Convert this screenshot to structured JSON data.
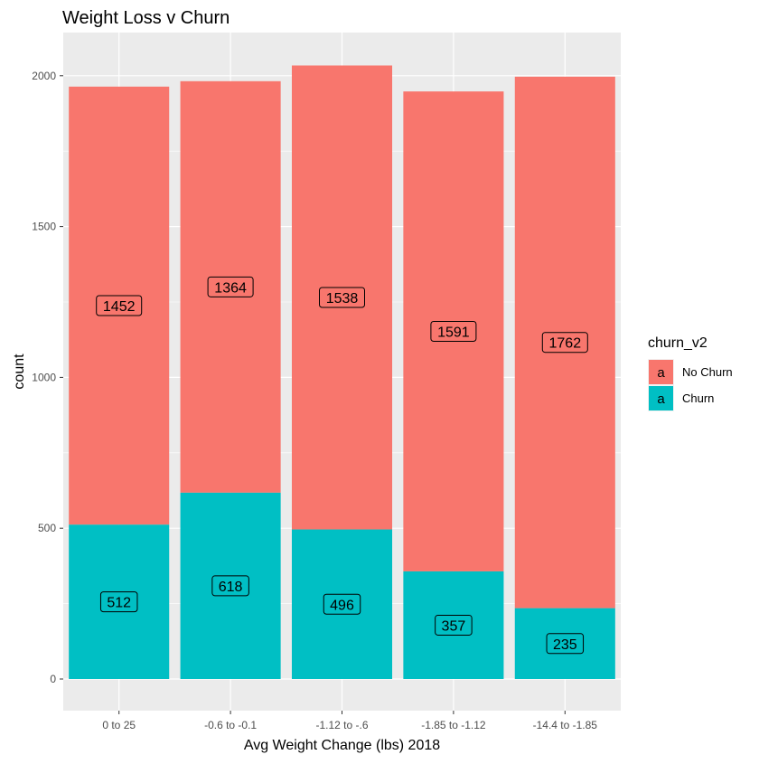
{
  "chart_data": {
    "type": "bar",
    "stacked": true,
    "title": "Weight Loss v Churn",
    "xlabel": "Avg Weight Change (lbs) 2018",
    "ylabel": "count",
    "categories": [
      "0 to 25",
      "-0.6 to -0.1",
      "-1.12 to -.6",
      "-1.85 to -1.12",
      "-14.4 to -1.85"
    ],
    "series": [
      {
        "name": "Churn",
        "values": [
          512,
          618,
          496,
          357,
          235
        ],
        "color": "#00BFC4"
      },
      {
        "name": "No Churn",
        "values": [
          1452,
          1364,
          1538,
          1591,
          1762
        ],
        "color": "#F8766D"
      }
    ],
    "yticks": [
      "0",
      "500",
      "1000",
      "1500",
      "2000"
    ],
    "ylim": [
      0,
      2100
    ],
    "grid": true,
    "legend": {
      "title": "churn_v2",
      "placement": "right",
      "key_glyph": "a",
      "entries": [
        {
          "name": "No Churn",
          "color": "#F8766D"
        },
        {
          "name": "Churn",
          "color": "#00BFC4"
        }
      ]
    }
  }
}
